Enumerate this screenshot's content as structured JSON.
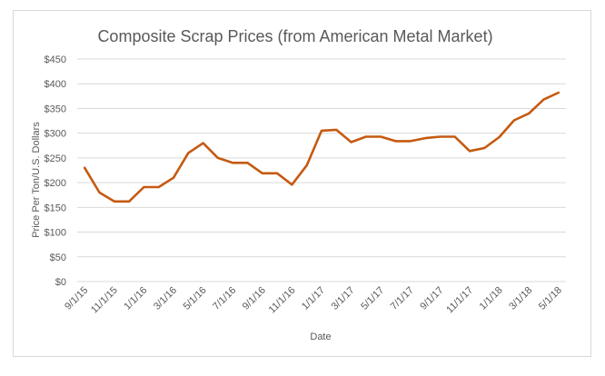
{
  "chart_data": {
    "type": "line",
    "title": "Composite Scrap Prices (from American Metal Market)",
    "xlabel": "Date",
    "ylabel": "Price Per Ton/U.S. Dollars",
    "ylim": [
      0,
      450
    ],
    "y_ticks": [
      0,
      50,
      100,
      150,
      200,
      250,
      300,
      350,
      400,
      450
    ],
    "y_tick_labels": [
      "$0",
      "$50",
      "$100",
      "$150",
      "$200",
      "$250",
      "$300",
      "$350",
      "$400",
      "$450"
    ],
    "x_tick_labels": [
      "9/1/15",
      "11/1/15",
      "1/1/16",
      "3/1/16",
      "5/1/16",
      "7/1/16",
      "9/1/16",
      "11/1/16",
      "1/1/17",
      "3/1/17",
      "5/1/17",
      "7/1/17",
      "9/1/17",
      "11/1/17",
      "1/1/18",
      "3/1/18",
      "5/1/18"
    ],
    "grid": true,
    "legend": "none",
    "series": [
      {
        "color": "#c55a11",
        "x": [
          "9/1/15",
          "10/1/15",
          "11/1/15",
          "12/1/15",
          "1/1/16",
          "2/1/16",
          "3/1/16",
          "4/1/16",
          "5/1/16",
          "6/1/16",
          "7/1/16",
          "8/1/16",
          "9/1/16",
          "10/1/16",
          "11/1/16",
          "12/1/16",
          "1/1/17",
          "2/1/17",
          "3/1/17",
          "4/1/17",
          "5/1/17",
          "6/1/17",
          "7/1/17",
          "8/1/17",
          "9/1/17",
          "10/1/17",
          "11/1/17",
          "12/1/17",
          "1/1/18",
          "2/1/18",
          "3/1/18",
          "4/1/18",
          "5/1/18"
        ],
        "values": [
          230,
          180,
          162,
          162,
          191,
          191,
          210,
          260,
          280,
          250,
          240,
          240,
          219,
          219,
          196,
          235,
          305,
          307,
          282,
          293,
          293,
          284,
          284,
          290,
          293,
          293,
          264,
          270,
          292,
          326,
          340,
          368,
          382
        ]
      }
    ]
  }
}
